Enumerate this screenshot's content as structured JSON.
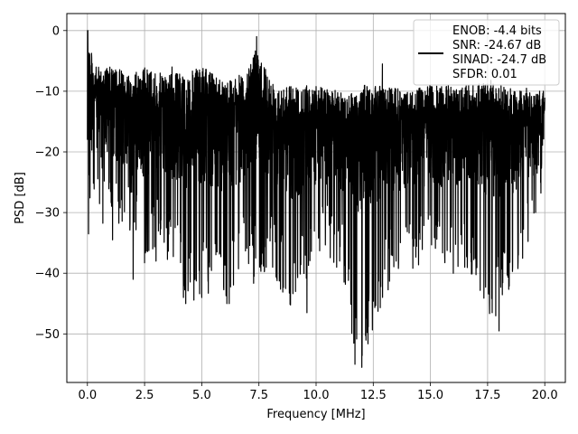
{
  "chart_data": {
    "type": "line",
    "title": "",
    "xlabel": "Frequency [MHz]",
    "ylabel": "PSD [dB]",
    "xlim": [
      -0.9,
      20.9
    ],
    "ylim": [
      -58,
      2.8
    ],
    "xticks": [
      0,
      2.5,
      5,
      7.5,
      10,
      12.5,
      15,
      17.5,
      20
    ],
    "xtick_labels": [
      "0.0",
      "2.5",
      "5.0",
      "7.5",
      "10.0",
      "12.5",
      "15.0",
      "17.5",
      "20.0"
    ],
    "yticks": [
      0,
      -10,
      -20,
      -30,
      -40,
      -50
    ],
    "ytick_labels": [
      "0",
      "−10",
      "−20",
      "−30",
      "−40",
      "−50"
    ],
    "grid": true,
    "legend_position": "top-right",
    "legend_entries": [
      "ENOB: -4.4 bits",
      "SNR: -24.67 dB",
      "SINAD: -24.7 dB",
      "SFDR: 0.01"
    ],
    "series": [
      {
        "color": "#000000",
        "x_range": [
          0,
          20
        ],
        "peak": {
          "x": 0,
          "y": 0
        },
        "envelope": {
          "x": [
            0,
            0.3,
            1,
            2,
            2.5,
            3,
            4,
            4.3,
            5,
            6,
            7,
            7.4,
            8,
            9,
            10,
            11,
            11.8,
            12,
            13,
            14,
            15,
            16,
            17,
            17.6,
            18,
            19,
            20
          ],
          "upper": [
            0,
            -6,
            -6,
            -7,
            -6,
            -7,
            -7,
            -7,
            -6,
            -8,
            -7,
            -2,
            -8,
            -9,
            -9,
            -10,
            -10,
            -9,
            -9,
            -10,
            -9,
            -9,
            -9,
            -8,
            -9,
            -10,
            -10
          ],
          "lower": [
            -33,
            -31,
            -33,
            -33,
            -41,
            -36,
            -41,
            -45,
            -44,
            -45,
            -39,
            -43,
            -40,
            -46,
            -38,
            -39,
            -55,
            -55,
            -44,
            -39,
            -40,
            -39,
            -41,
            -49,
            -47,
            -38,
            -27
          ]
        },
        "dips": [
          [
            0.05,
            -33.5
          ],
          [
            1.1,
            -34.5
          ],
          [
            2.0,
            -41
          ],
          [
            3.0,
            -38
          ],
          [
            4.2,
            -44
          ],
          [
            4.3,
            -45
          ],
          [
            5.0,
            -44
          ],
          [
            6.1,
            -45
          ],
          [
            6.2,
            -45
          ],
          [
            8.1,
            -39
          ],
          [
            9.1,
            -43
          ],
          [
            9.6,
            -46.5
          ],
          [
            10.9,
            -39
          ],
          [
            11.7,
            -55
          ],
          [
            12.0,
            -55.5
          ],
          [
            13.5,
            -38
          ],
          [
            16.0,
            -40
          ],
          [
            16.5,
            -39
          ],
          [
            17.7,
            -46.5
          ],
          [
            18.0,
            -49.5
          ],
          [
            19.2,
            -43
          ]
        ],
        "spikes": [
          [
            0.02,
            0
          ],
          [
            4.9,
            -6.5
          ],
          [
            7.4,
            -1
          ],
          [
            3.7,
            -6
          ],
          [
            12.9,
            -5.5
          ],
          [
            19.2,
            -9.5
          ]
        ]
      }
    ]
  }
}
